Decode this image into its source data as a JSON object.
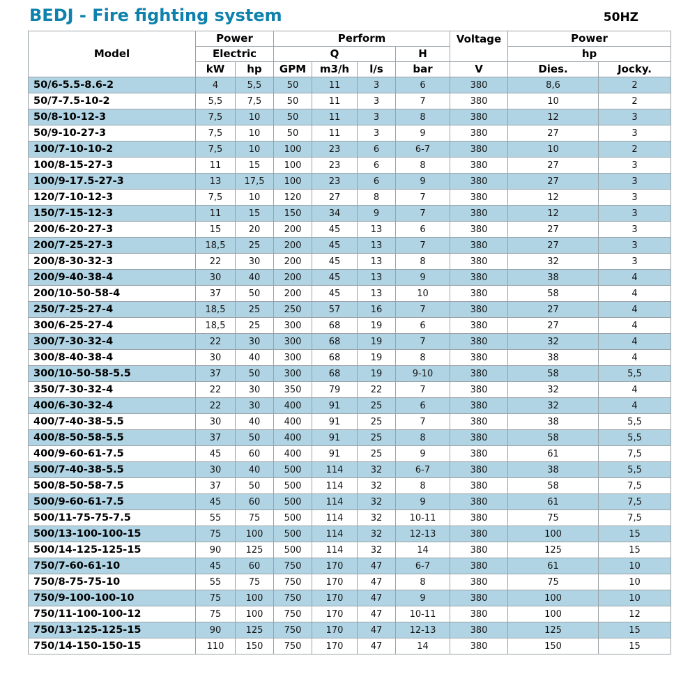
{
  "page": {
    "title": "BEDJ - Fire fighting system",
    "frequency_label": "50HZ"
  },
  "colors": {
    "title_accent": "#0e81ac",
    "row_highlight": "#b0d4e4",
    "table_border": "#9aa1a6"
  },
  "table": {
    "header": {
      "model": "Model",
      "power_left_line1": "Power",
      "power_left_line2": "Electric",
      "perform": "Perform",
      "q": "Q",
      "h": "H",
      "voltage": "Voltage",
      "power_right_line1": "Power",
      "power_right_line2": "hp",
      "units": [
        "kW",
        "hp",
        "GPM",
        "m3/h",
        "l/s",
        "bar",
        "V",
        "Dies.",
        "Jocky."
      ]
    },
    "rows": [
      [
        "50/6-5.5-8.6-2",
        "4",
        "5,5",
        "50",
        "11",
        "3",
        "6",
        "380",
        "8,6",
        "2"
      ],
      [
        "50/7-7.5-10-2",
        "5,5",
        "7,5",
        "50",
        "11",
        "3",
        "7",
        "380",
        "10",
        "2"
      ],
      [
        "50/8-10-12-3",
        "7,5",
        "10",
        "50",
        "11",
        "3",
        "8",
        "380",
        "12",
        "3"
      ],
      [
        "50/9-10-27-3",
        "7,5",
        "10",
        "50",
        "11",
        "3",
        "9",
        "380",
        "27",
        "3"
      ],
      [
        "100/7-10-10-2",
        "7,5",
        "10",
        "100",
        "23",
        "6",
        "6-7",
        "380",
        "10",
        "2"
      ],
      [
        "100/8-15-27-3",
        "11",
        "15",
        "100",
        "23",
        "6",
        "8",
        "380",
        "27",
        "3"
      ],
      [
        "100/9-17.5-27-3",
        "13",
        "17,5",
        "100",
        "23",
        "6",
        "9",
        "380",
        "27",
        "3"
      ],
      [
        "120/7-10-12-3",
        "7,5",
        "10",
        "120",
        "27",
        "8",
        "7",
        "380",
        "12",
        "3"
      ],
      [
        "150/7-15-12-3",
        "11",
        "15",
        "150",
        "34",
        "9",
        "7",
        "380",
        "12",
        "3"
      ],
      [
        "200/6-20-27-3",
        "15",
        "20",
        "200",
        "45",
        "13",
        "6",
        "380",
        "27",
        "3"
      ],
      [
        "200/7-25-27-3",
        "18,5",
        "25",
        "200",
        "45",
        "13",
        "7",
        "380",
        "27",
        "3"
      ],
      [
        "200/8-30-32-3",
        "22",
        "30",
        "200",
        "45",
        "13",
        "8",
        "380",
        "32",
        "3"
      ],
      [
        "200/9-40-38-4",
        "30",
        "40",
        "200",
        "45",
        "13",
        "9",
        "380",
        "38",
        "4"
      ],
      [
        "200/10-50-58-4",
        "37",
        "50",
        "200",
        "45",
        "13",
        "10",
        "380",
        "58",
        "4"
      ],
      [
        "250/7-25-27-4",
        "18,5",
        "25",
        "250",
        "57",
        "16",
        "7",
        "380",
        "27",
        "4"
      ],
      [
        "300/6-25-27-4",
        "18,5",
        "25",
        "300",
        "68",
        "19",
        "6",
        "380",
        "27",
        "4"
      ],
      [
        "300/7-30-32-4",
        "22",
        "30",
        "300",
        "68",
        "19",
        "7",
        "380",
        "32",
        "4"
      ],
      [
        "300/8-40-38-4",
        "30",
        "40",
        "300",
        "68",
        "19",
        "8",
        "380",
        "38",
        "4"
      ],
      [
        "300/10-50-58-5.5",
        "37",
        "50",
        "300",
        "68",
        "19",
        "9-10",
        "380",
        "58",
        "5,5"
      ],
      [
        "350/7-30-32-4",
        "22",
        "30",
        "350",
        "79",
        "22",
        "7",
        "380",
        "32",
        "4"
      ],
      [
        "400/6-30-32-4",
        "22",
        "30",
        "400",
        "91",
        "25",
        "6",
        "380",
        "32",
        "4"
      ],
      [
        "400/7-40-38-5.5",
        "30",
        "40",
        "400",
        "91",
        "25",
        "7",
        "380",
        "38",
        "5,5"
      ],
      [
        "400/8-50-58-5.5",
        "37",
        "50",
        "400",
        "91",
        "25",
        "8",
        "380",
        "58",
        "5,5"
      ],
      [
        "400/9-60-61-7.5",
        "45",
        "60",
        "400",
        "91",
        "25",
        "9",
        "380",
        "61",
        "7,5"
      ],
      [
        "500/7-40-38-5.5",
        "30",
        "40",
        "500",
        "114",
        "32",
        "6-7",
        "380",
        "38",
        "5,5"
      ],
      [
        "500/8-50-58-7.5",
        "37",
        "50",
        "500",
        "114",
        "32",
        "8",
        "380",
        "58",
        "7,5"
      ],
      [
        "500/9-60-61-7.5",
        "45",
        "60",
        "500",
        "114",
        "32",
        "9",
        "380",
        "61",
        "7,5"
      ],
      [
        "500/11-75-75-7.5",
        "55",
        "75",
        "500",
        "114",
        "32",
        "10-11",
        "380",
        "75",
        "7,5"
      ],
      [
        "500/13-100-100-15",
        "75",
        "100",
        "500",
        "114",
        "32",
        "12-13",
        "380",
        "100",
        "15"
      ],
      [
        "500/14-125-125-15",
        "90",
        "125",
        "500",
        "114",
        "32",
        "14",
        "380",
        "125",
        "15"
      ],
      [
        "750/7-60-61-10",
        "45",
        "60",
        "750",
        "170",
        "47",
        "6-7",
        "380",
        "61",
        "10"
      ],
      [
        "750/8-75-75-10",
        "55",
        "75",
        "750",
        "170",
        "47",
        "8",
        "380",
        "75",
        "10"
      ],
      [
        "750/9-100-100-10",
        "75",
        "100",
        "750",
        "170",
        "47",
        "9",
        "380",
        "100",
        "10"
      ],
      [
        "750/11-100-100-12",
        "75",
        "100",
        "750",
        "170",
        "47",
        "10-11",
        "380",
        "100",
        "12"
      ],
      [
        "750/13-125-125-15",
        "90",
        "125",
        "750",
        "170",
        "47",
        "12-13",
        "380",
        "125",
        "15"
      ],
      [
        "750/14-150-150-15",
        "110",
        "150",
        "750",
        "170",
        "47",
        "14",
        "380",
        "150",
        "15"
      ]
    ]
  }
}
